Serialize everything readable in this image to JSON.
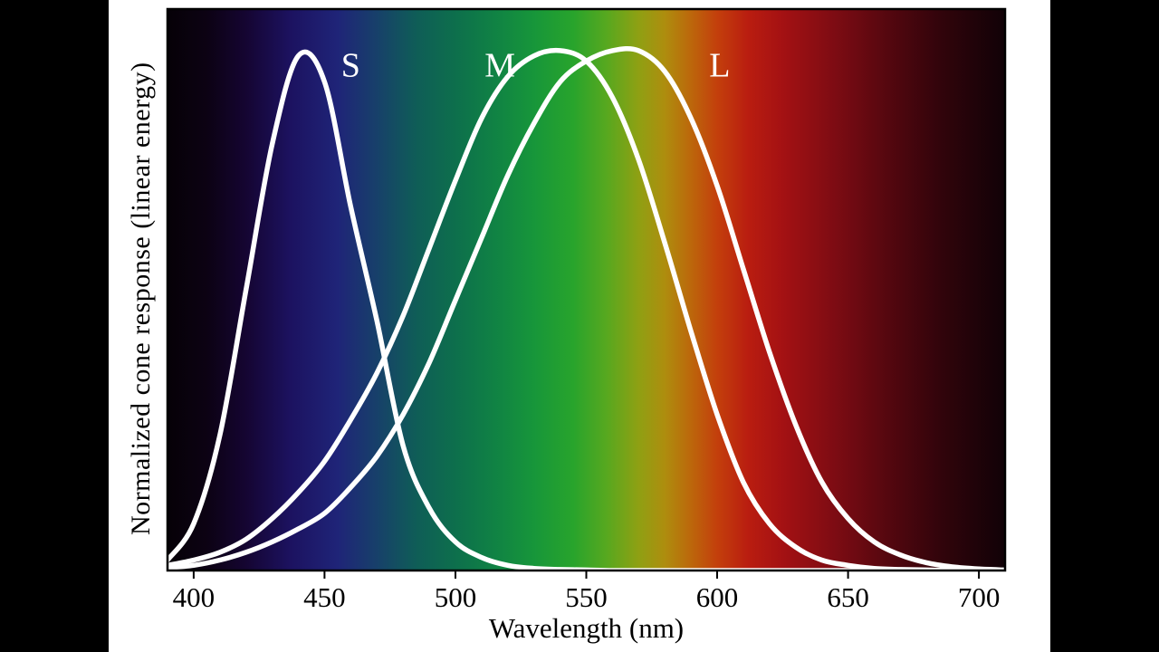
{
  "chart_data": {
    "type": "line",
    "title": "",
    "xlabel": "Wavelength (nm)",
    "ylabel": "Normalized cone response (linear energy)",
    "xlim": [
      390,
      710
    ],
    "ylim": [
      0,
      1.08
    ],
    "xticks": [
      400,
      450,
      500,
      550,
      600,
      650,
      700
    ],
    "grid": false,
    "legend_position": "inline-curve-labels",
    "curve_color": "#ffffff",
    "frame_color": "#000000",
    "panel_background": "#ffffff",
    "letterbox_color": "#000000",
    "curve_stroke_width": 5.5,
    "x": [
      390,
      400,
      410,
      420,
      430,
      440,
      450,
      460,
      470,
      480,
      490,
      500,
      510,
      520,
      530,
      540,
      550,
      560,
      570,
      580,
      590,
      600,
      610,
      620,
      630,
      640,
      650,
      660,
      670,
      680,
      690,
      700,
      710
    ],
    "series": [
      {
        "name": "S",
        "peak_nm": 442,
        "label_nm": 460,
        "label_value": 0.95,
        "values": [
          0.02,
          0.09,
          0.26,
          0.54,
          0.82,
          0.99,
          0.94,
          0.7,
          0.48,
          0.24,
          0.12,
          0.055,
          0.025,
          0.01,
          0.004,
          0.002,
          0.001,
          0,
          0,
          0,
          0,
          0,
          0,
          0,
          0,
          0,
          0,
          0,
          0,
          0,
          0,
          0,
          0
        ]
      },
      {
        "name": "M",
        "peak_nm": 543,
        "label_nm": 517,
        "label_value": 0.95,
        "values": [
          0.01,
          0.02,
          0.035,
          0.06,
          0.1,
          0.15,
          0.21,
          0.29,
          0.38,
          0.49,
          0.62,
          0.75,
          0.87,
          0.95,
          0.99,
          1.0,
          0.98,
          0.91,
          0.79,
          0.63,
          0.46,
          0.3,
          0.17,
          0.09,
          0.045,
          0.02,
          0.01,
          0.004,
          0.002,
          0.001,
          0,
          0,
          0
        ]
      },
      {
        "name": "L",
        "peak_nm": 570,
        "label_nm": 601,
        "label_value": 0.95,
        "values": [
          0.005,
          0.01,
          0.02,
          0.035,
          0.055,
          0.08,
          0.11,
          0.16,
          0.22,
          0.3,
          0.4,
          0.52,
          0.64,
          0.76,
          0.86,
          0.94,
          0.98,
          1.0,
          1.0,
          0.96,
          0.87,
          0.74,
          0.58,
          0.42,
          0.28,
          0.17,
          0.1,
          0.055,
          0.03,
          0.015,
          0.007,
          0.003,
          0.001
        ]
      }
    ],
    "background_spectrum": [
      {
        "nm": 390,
        "color": "#060107"
      },
      {
        "nm": 405,
        "color": "#0c0213"
      },
      {
        "nm": 420,
        "color": "#150532"
      },
      {
        "nm": 437,
        "color": "#1c1260"
      },
      {
        "nm": 455,
        "color": "#1f2478"
      },
      {
        "nm": 470,
        "color": "#17406a"
      },
      {
        "nm": 485,
        "color": "#0f5d57"
      },
      {
        "nm": 500,
        "color": "#0d6f4c"
      },
      {
        "nm": 515,
        "color": "#108244"
      },
      {
        "nm": 530,
        "color": "#17963a"
      },
      {
        "nm": 545,
        "color": "#28a42c"
      },
      {
        "nm": 558,
        "color": "#58a81f"
      },
      {
        "nm": 570,
        "color": "#8fa013"
      },
      {
        "nm": 580,
        "color": "#ae8d0e"
      },
      {
        "nm": 590,
        "color": "#bc670b"
      },
      {
        "nm": 600,
        "color": "#c33f0c"
      },
      {
        "nm": 612,
        "color": "#b91d10"
      },
      {
        "nm": 625,
        "color": "#a41113"
      },
      {
        "nm": 645,
        "color": "#7d0c13"
      },
      {
        "nm": 665,
        "color": "#55070f"
      },
      {
        "nm": 685,
        "color": "#32040b"
      },
      {
        "nm": 710,
        "color": "#110207"
      }
    ]
  }
}
